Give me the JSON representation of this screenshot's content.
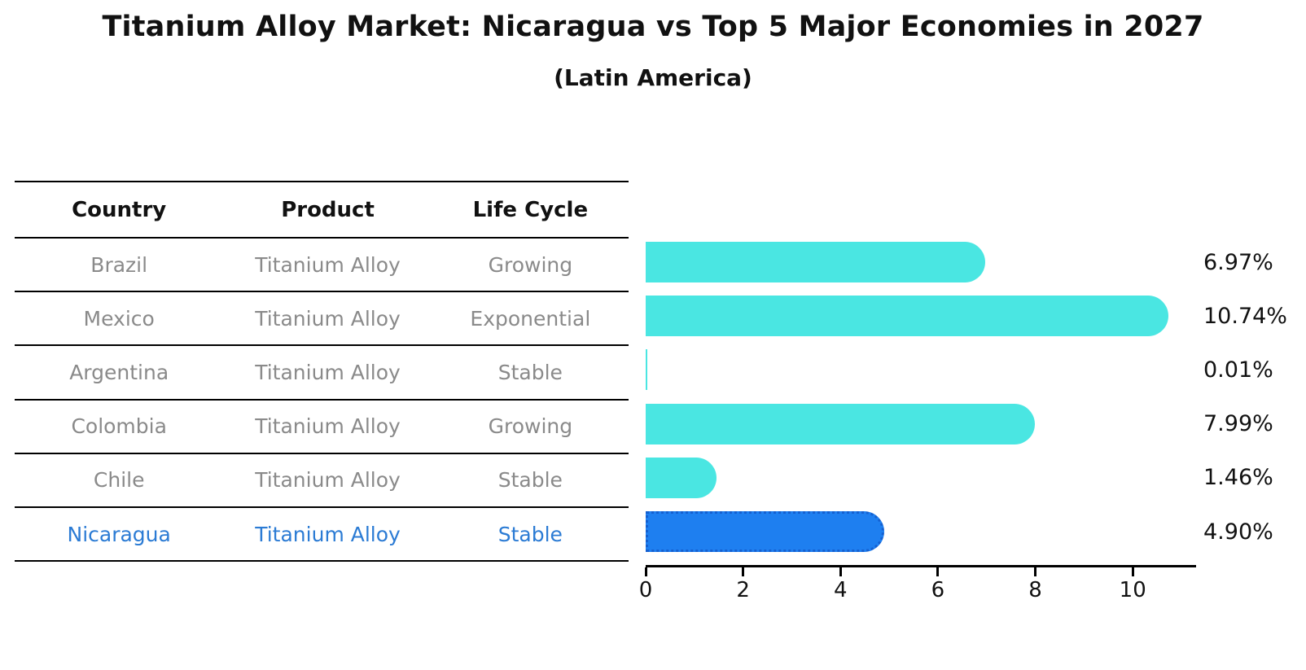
{
  "header": {
    "title": "Titanium Alloy Market: Nicaragua vs Top 5 Major Economies in 2027",
    "subtitle": "(Latin America)"
  },
  "table": {
    "columns": [
      "Country",
      "Product",
      "Life Cycle"
    ],
    "rows": [
      {
        "country": "Brazil",
        "product": "Titanium Alloy",
        "life_cycle": "Growing",
        "highlight": false
      },
      {
        "country": "Mexico",
        "product": "Titanium Alloy",
        "life_cycle": "Exponential",
        "highlight": false
      },
      {
        "country": "Argentina",
        "product": "Titanium Alloy",
        "life_cycle": "Stable",
        "highlight": false
      },
      {
        "country": "Colombia",
        "product": "Titanium Alloy",
        "life_cycle": "Growing",
        "highlight": false
      },
      {
        "country": "Chile",
        "product": "Titanium Alloy",
        "life_cycle": "Stable",
        "highlight": false
      },
      {
        "country": "Nicaragua",
        "product": "Titanium Alloy",
        "life_cycle": "Stable",
        "highlight": true
      }
    ]
  },
  "chart_data": {
    "type": "bar",
    "orientation": "horizontal",
    "title": "Titanium Alloy Market: Nicaragua vs Top 5 Major Economies in 2027",
    "subtitle": "(Latin America)",
    "categories": [
      "Brazil",
      "Mexico",
      "Argentina",
      "Colombia",
      "Chile",
      "Nicaragua"
    ],
    "values": [
      6.97,
      10.74,
      0.01,
      7.99,
      1.46,
      4.9
    ],
    "value_labels": [
      "6.97%",
      "10.74%",
      "0.01%",
      "7.99%",
      "1.46%",
      "4.90%"
    ],
    "highlight_category": "Nicaragua",
    "xticks": [
      0,
      2,
      4,
      6,
      8,
      10
    ],
    "xlim": [
      0,
      11.3
    ],
    "grid": false,
    "legend": "none",
    "colors": {
      "bar": "#4ae6e2",
      "highlight_bar": "#1e7ff0",
      "highlight_bar_border": "#1560d0",
      "highlight_text": "#2b7bd4",
      "table_text": "#8a8a8a",
      "text": "#111111"
    }
  }
}
